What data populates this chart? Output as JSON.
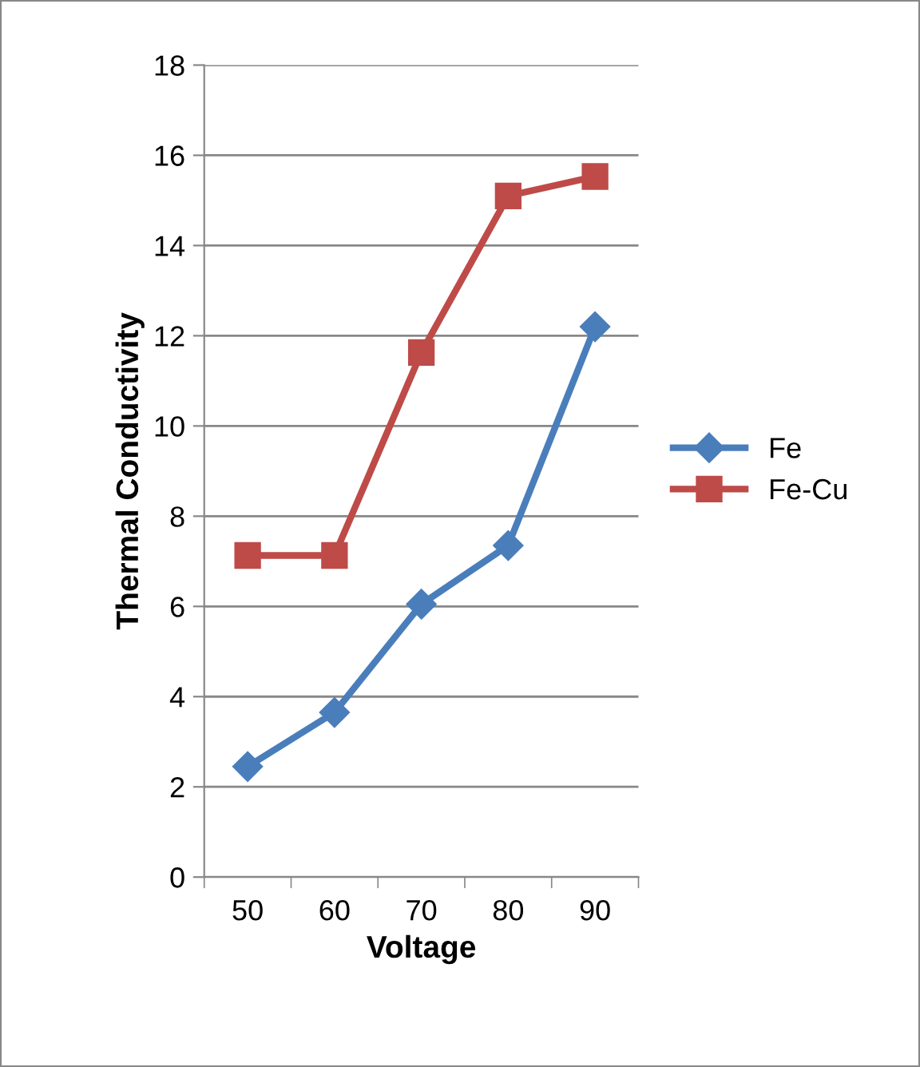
{
  "chart_data": {
    "type": "line",
    "xlabel": "Voltage",
    "ylabel": "Thermal Conductivity",
    "categories": [
      "50",
      "60",
      "70",
      "80",
      "90"
    ],
    "series": [
      {
        "name": "Fe",
        "color": "#4a7ebb",
        "marker": "diamond",
        "values": [
          2.45,
          3.65,
          6.05,
          7.35,
          12.2
        ]
      },
      {
        "name": "Fe-Cu",
        "color": "#be4b48",
        "marker": "square",
        "values": [
          7.13,
          7.13,
          11.63,
          15.1,
          15.53
        ]
      }
    ],
    "ylim": [
      0,
      18
    ],
    "yticks": [
      0,
      2,
      4,
      6,
      8,
      10,
      12,
      14,
      16,
      18
    ],
    "grid": "y",
    "legend": "right",
    "line_style": "solid"
  }
}
